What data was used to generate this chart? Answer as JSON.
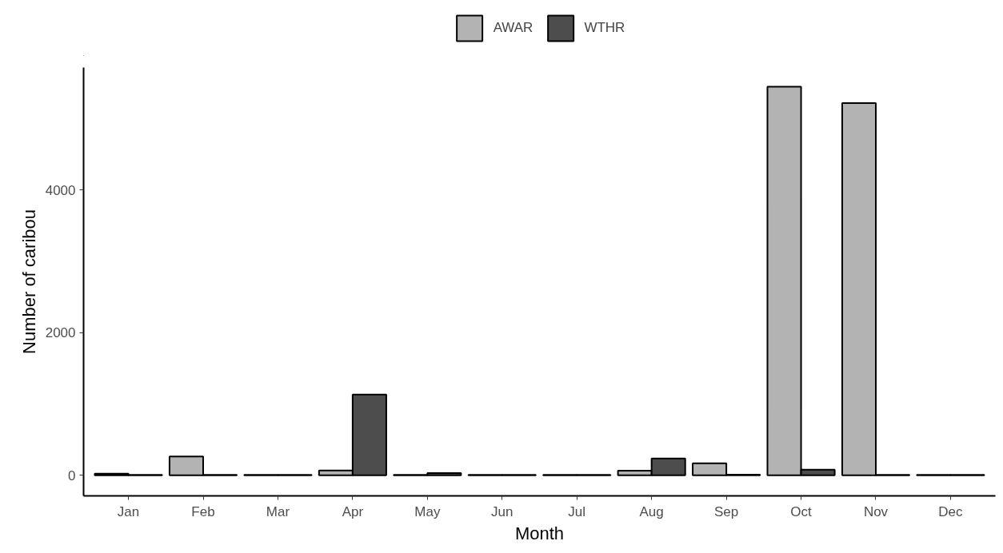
{
  "chart_data": {
    "type": "bar",
    "xlabel": "Month",
    "ylabel": "Number of caribou",
    "categories": [
      "Jan",
      "Feb",
      "Mar",
      "Apr",
      "May",
      "Jun",
      "Jul",
      "Aug",
      "Sep",
      "Oct",
      "Nov",
      "Dec"
    ],
    "series": [
      {
        "name": "AWAR",
        "color": "#b3b3b3",
        "values": [
          20,
          262,
          5,
          67,
          3,
          5,
          3,
          62,
          168,
          5450,
          5220,
          3
        ]
      },
      {
        "name": "WTHR",
        "color": "#4d4d4d",
        "values": [
          5,
          5,
          5,
          1130,
          30,
          3,
          3,
          235,
          8,
          78,
          3,
          3
        ]
      }
    ],
    "ylim": [
      -290,
      5720
    ],
    "yticks": [
      0,
      2000,
      4000
    ],
    "grid": false,
    "legend": "top"
  }
}
